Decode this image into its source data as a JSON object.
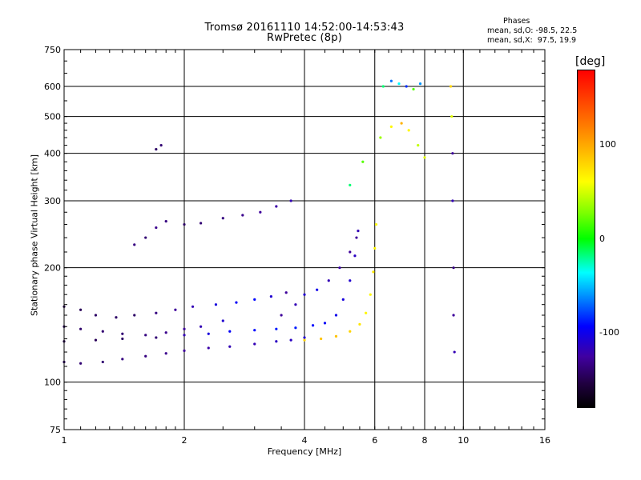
{
  "chart_data": {
    "type": "scatter",
    "title": "Tromsø 20161110 14:52:00-14:53:43",
    "subtitle": "RwPretec (8p)",
    "xlabel": "Frequency [MHz]",
    "ylabel": "Stationary phase Virtual Height [km]",
    "x_scale": "log",
    "y_scale": "log",
    "xlim": [
      1,
      16
    ],
    "ylim": [
      75,
      750
    ],
    "x_ticks": [
      "1",
      "2",
      "4",
      "6",
      "8",
      "10",
      "16"
    ],
    "x_tick_values": [
      1,
      2,
      4,
      6,
      8,
      10,
      16
    ],
    "y_ticks": [
      "750",
      "600",
      "500",
      "400",
      "300",
      "200",
      "100",
      "75"
    ],
    "y_tick_values": [
      750,
      600,
      500,
      400,
      300,
      200,
      100,
      75
    ],
    "grid": true,
    "colorbar": {
      "unit": "[deg]",
      "ticks": [
        "100",
        "0",
        "-100"
      ],
      "tick_values": [
        100,
        0,
        -100
      ],
      "range": [
        -180,
        180
      ],
      "colors": [
        "#000000",
        "#200040",
        "#4000a0",
        "#0000ff",
        "#0080ff",
        "#00ffff",
        "#00ff00",
        "#80ff00",
        "#ffff00",
        "#ff8000",
        "#ff0000"
      ]
    },
    "phases": {
      "title": "Phases",
      "line_o": "mean, sd,O: -98.5, 22.5",
      "line_x": "mean, sd,X:  97.5, 19.9"
    },
    "series": [
      {
        "x": [
          1.0,
          1.1,
          1.25,
          1.4,
          1.6,
          1.8,
          2.0,
          2.3,
          2.6,
          3.0,
          3.4,
          3.7,
          4.0
        ],
        "y": [
          113,
          112,
          113,
          115,
          117,
          119,
          121,
          123,
          124,
          126,
          128,
          129,
          131
        ],
        "phase": [
          -130,
          -125,
          -125,
          -120,
          -120,
          -115,
          -110,
          -105,
          -100,
          -100,
          -95,
          -95,
          -90
        ]
      },
      {
        "x": [
          1.0,
          1.2,
          1.4,
          1.7,
          2.0,
          2.3,
          2.6,
          3.0,
          3.4,
          3.8,
          4.2,
          4.5,
          4.8,
          5.0,
          5.2,
          5.35,
          5.45
        ],
        "y": [
          128,
          129,
          130,
          131,
          133,
          134,
          136,
          137,
          138,
          139,
          141,
          143,
          150,
          165,
          185,
          215,
          250
        ],
        "phase": [
          -140,
          -135,
          -130,
          -125,
          -100,
          -85,
          -75,
          -70,
          -65,
          -65,
          -70,
          -75,
          -80,
          -85,
          -90,
          -95,
          -100
        ]
      },
      {
        "x": [
          4.0,
          4.4,
          4.8,
          5.2,
          5.5,
          5.7,
          5.85,
          5.95,
          6.0,
          6.05
        ],
        "y": [
          129,
          130,
          132,
          136,
          142,
          152,
          170,
          195,
          225,
          260
        ],
        "phase": [
          120,
          125,
          125,
          120,
          115,
          110,
          110,
          115,
          110,
          110
        ]
      },
      {
        "x": [
          1.0,
          1.1,
          1.2,
          1.35,
          1.5,
          1.7,
          1.9,
          2.1,
          2.4,
          2.7,
          3.0,
          3.3,
          3.6
        ],
        "y": [
          158,
          155,
          150,
          148,
          150,
          152,
          155,
          158,
          160,
          162,
          165,
          168,
          172
        ],
        "phase": [
          -140,
          -135,
          -130,
          -130,
          -130,
          -120,
          -110,
          -100,
          -85,
          -75,
          -70,
          -90,
          -110
        ]
      },
      {
        "x": [
          1.0,
          1.1,
          1.25,
          1.4,
          1.6,
          1.8,
          2.0,
          2.2,
          2.5
        ],
        "y": [
          140,
          138,
          136,
          134,
          133,
          135,
          138,
          140,
          145
        ],
        "phase": [
          -130,
          -128,
          -126,
          -125,
          -120,
          -115,
          -110,
          -100,
          -90
        ]
      },
      {
        "x": [
          3.5,
          3.8,
          4.0,
          4.3,
          4.6,
          4.9,
          5.2,
          5.4
        ],
        "y": [
          150,
          160,
          170,
          175,
          185,
          200,
          220,
          240
        ],
        "phase": [
          -110,
          -100,
          -90,
          -80,
          -100,
          -105,
          -110,
          -110
        ]
      },
      {
        "x": [
          1.5,
          1.6,
          1.7,
          1.8,
          2.0,
          2.2,
          2.5,
          2.8,
          3.1,
          3.4,
          3.7
        ],
        "y": [
          230,
          240,
          255,
          265,
          260,
          262,
          270,
          275,
          280,
          290,
          300
        ],
        "phase": [
          -120,
          -125,
          -115,
          -120,
          -130,
          -125,
          -120,
          -115,
          -110,
          -105,
          -100
        ]
      },
      {
        "x": [
          1.7,
          1.75
        ],
        "y": [
          410,
          420
        ],
        "phase": [
          -130,
          -125
        ]
      },
      {
        "x": [
          5.2,
          5.6,
          6.2,
          6.6,
          7.0,
          7.3,
          7.7,
          8.0
        ],
        "y": [
          330,
          380,
          440,
          470,
          480,
          460,
          420,
          390
        ],
        "phase": [
          20,
          60,
          80,
          110,
          130,
          110,
          90,
          100
        ]
      },
      {
        "x": [
          6.3,
          6.6,
          6.9,
          7.2,
          7.5,
          7.8
        ],
        "y": [
          600,
          620,
          610,
          600,
          590,
          610
        ],
        "phase": [
          20,
          -40,
          0,
          -60,
          60,
          -30
        ]
      },
      {
        "x": [
          9.3,
          9.35,
          9.4,
          9.4,
          9.45,
          9.45,
          9.5
        ],
        "y": [
          600,
          500,
          400,
          300,
          200,
          150,
          120
        ],
        "phase": [
          120,
          100,
          -110,
          -100,
          -120,
          -110,
          -100
        ]
      }
    ]
  }
}
